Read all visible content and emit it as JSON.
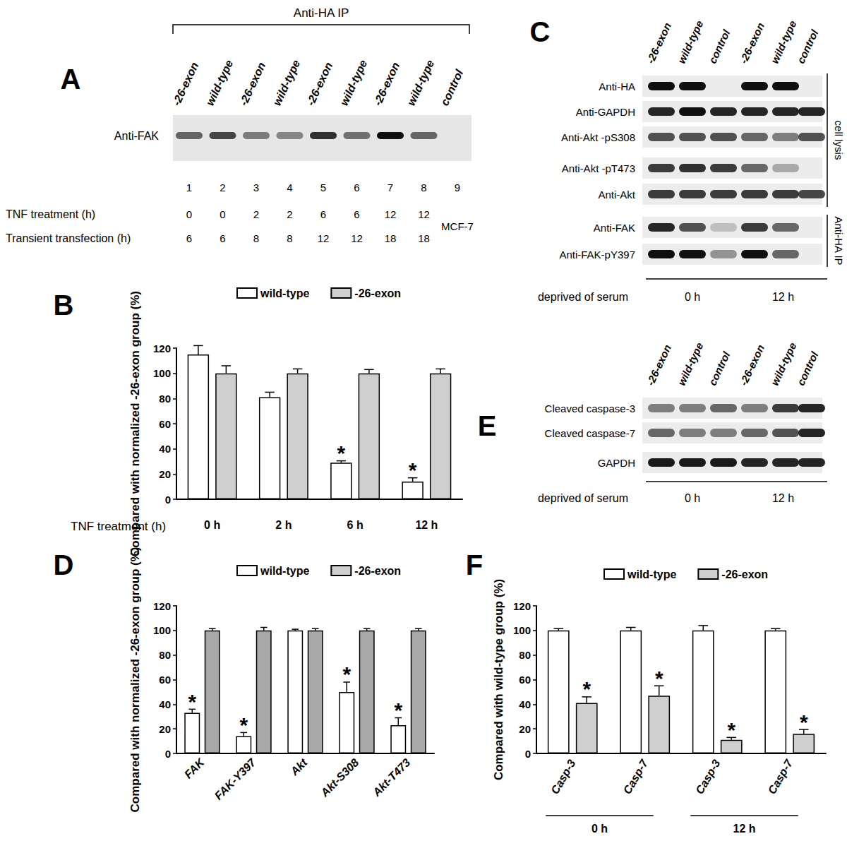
{
  "chart_data": [
    {
      "type": "bar",
      "title": "B",
      "y_label": "Compared with normalized -26-exon group (%)",
      "x_label": "TNF treatment (h)",
      "categories": [
        "0 h",
        "2 h",
        "6 h",
        "12 h"
      ],
      "series": [
        {
          "name": "wild-type",
          "color": "#ffffff",
          "values": [
            115,
            81,
            29,
            14
          ],
          "errors": [
            7,
            4,
            1.5,
            3
          ],
          "annotations": [
            null,
            null,
            "*",
            "*"
          ]
        },
        {
          "name": "-26-exon",
          "color": "#cfcfcf",
          "values": [
            100,
            100,
            100,
            100
          ],
          "errors": [
            6,
            3.5,
            3,
            3.5
          ],
          "annotations": [
            null,
            null,
            null,
            null
          ]
        }
      ],
      "ylim": [
        0,
        120
      ],
      "yticks": [
        0,
        20,
        40,
        60,
        80,
        100,
        120
      ],
      "grid": false,
      "legend": "top"
    },
    {
      "type": "bar",
      "title": "D",
      "y_label": "Compared with normalized -26-exon group (%)",
      "categories": [
        "FAK",
        "FAK-Y397",
        "Akt",
        "Akt-S308",
        "Akt-T473"
      ],
      "series": [
        {
          "name": "wild-type",
          "color": "#ffffff",
          "values": [
            33,
            14,
            100,
            50,
            23
          ],
          "errors": [
            3,
            3,
            1,
            8,
            6
          ],
          "annotations": [
            "*",
            "*",
            null,
            "*",
            "*"
          ]
        },
        {
          "name": "-26-exon",
          "color": "#a8a8a8",
          "values": [
            100,
            100,
            100,
            100,
            100
          ],
          "errors": [
            1.5,
            2.5,
            1.5,
            1.5,
            1.5
          ],
          "annotations": [
            null,
            null,
            null,
            null,
            null
          ]
        }
      ],
      "ylim": [
        0,
        120
      ],
      "yticks": [
        0,
        20,
        40,
        60,
        80,
        100,
        120
      ],
      "grid": false,
      "legend": "top"
    },
    {
      "type": "bar",
      "title": "F",
      "y_label": "Compared with wild-type group (%)",
      "categories": [
        "Casp-3",
        "Casp-7",
        "Casp-3",
        "Casp-7"
      ],
      "groups": [
        {
          "label": "0 h",
          "span": 2
        },
        {
          "label": "12 h",
          "span": 2
        }
      ],
      "series": [
        {
          "name": "wild-type",
          "color": "#ffffff",
          "values": [
            100,
            100,
            100,
            100
          ],
          "errors": [
            1.5,
            2.5,
            4,
            1.5
          ],
          "annotations": [
            null,
            null,
            null,
            null
          ]
        },
        {
          "name": "-26-exon",
          "color": "#cfcfcf",
          "values": [
            41,
            47,
            11,
            16
          ],
          "errors": [
            5,
            8,
            2,
            3.5
          ],
          "annotations": [
            "*",
            "*",
            "*",
            "*"
          ]
        }
      ],
      "ylim": [
        0,
        120
      ],
      "yticks": [
        0,
        20,
        40,
        60,
        80,
        100,
        120
      ],
      "grid": false,
      "legend": "top"
    }
  ],
  "panels": {
    "A": {
      "letter": "A",
      "header": "Anti-HA IP",
      "lanes": [
        "-26-exon",
        "wild-type",
        "-26-exon",
        "wild-type",
        "-26-exon",
        "wild-type",
        "-26-exon",
        "wild-type",
        "control"
      ],
      "rows": [
        {
          "label": "Anti-FAK",
          "bands": [
            0.6,
            0.75,
            0.5,
            0.45,
            0.85,
            0.55,
            1.0,
            0.6,
            0
          ]
        }
      ],
      "lane_numbers": [
        1,
        2,
        3,
        4,
        5,
        6,
        7,
        8,
        9
      ],
      "conditions": [
        {
          "label": "TNF treatment (h)",
          "values": [
            0,
            0,
            2,
            2,
            6,
            6,
            12,
            12
          ]
        },
        {
          "label": "Transient transfection (h)",
          "values": [
            6,
            6,
            8,
            8,
            12,
            12,
            18,
            18
          ]
        }
      ],
      "cell_line": "MCF-7"
    },
    "C": {
      "letter": "C",
      "lanes": [
        "-26-exon",
        "wild-type",
        "control",
        "-26-exon",
        "wild-type",
        "control"
      ],
      "rows": [
        {
          "label": "Anti-HA",
          "bands": [
            1,
            1,
            0,
            1,
            1,
            0
          ]
        },
        {
          "label": "Anti-GAPDH",
          "bands": [
            0.9,
            1,
            0.9,
            0.9,
            0.9,
            0.9
          ]
        },
        {
          "label": "Anti-Akt -pS308",
          "bands": [
            0.7,
            0.7,
            0.7,
            0.6,
            0.5,
            0.7
          ]
        },
        {
          "label": "Anti-Akt -pT473",
          "bands": [
            0.8,
            0.85,
            0.8,
            0.6,
            0.3,
            0
          ]
        },
        {
          "label": "Anti-Akt",
          "bands": [
            0.8,
            0.8,
            0.8,
            0.8,
            0.8,
            0.75
          ]
        },
        {
          "label": "Anti-FAK",
          "bands": [
            0.9,
            0.7,
            0.2,
            0.8,
            0.6,
            0
          ]
        },
        {
          "label": "Anti-FAK-pY397",
          "bands": [
            1,
            1,
            0.4,
            1,
            0.6,
            0
          ]
        }
      ],
      "row_groups": [
        {
          "label": "cell lysis",
          "rows": 5
        },
        {
          "label": "Anti-HA IP",
          "rows": 2
        }
      ],
      "footer": "deprived of serum",
      "footer_groups": [
        "0 h",
        "12 h"
      ]
    },
    "E": {
      "letter": "E",
      "lanes": [
        "-26-exon",
        "wild-type",
        "control",
        "-26-exon",
        "wild-type",
        "control"
      ],
      "rows": [
        {
          "label": "Cleaved caspase-3",
          "bands": [
            0.5,
            0.5,
            0.6,
            0.5,
            0.8,
            0.9
          ]
        },
        {
          "label": "Cleaved caspase-7",
          "bands": [
            0.6,
            0.5,
            0.5,
            0.6,
            0.7,
            0.9
          ]
        },
        {
          "label": "GAPDH",
          "bands": [
            0.95,
            0.95,
            0.95,
            0.9,
            0.9,
            0.9
          ]
        }
      ],
      "footer": "deprived of serum",
      "footer_groups": [
        "0 h",
        "12 h"
      ]
    }
  }
}
